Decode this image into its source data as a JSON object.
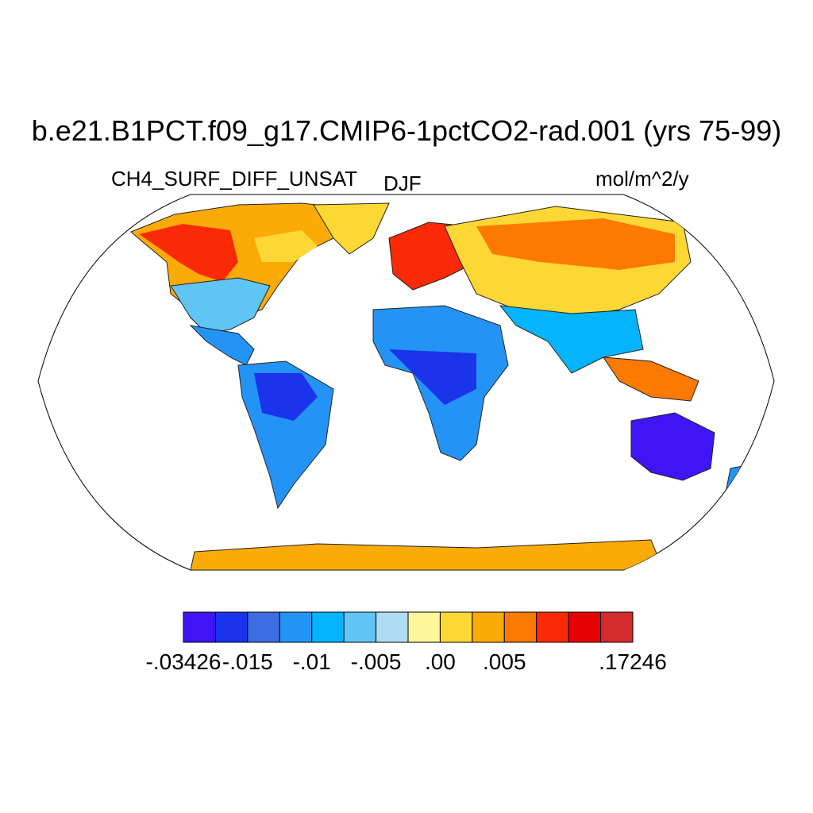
{
  "title": "b.e21.B1PCT.f09_g17.CMIP6-1pctCO2-rad.001 (yrs 75-99)",
  "subtitle_left": "CH4_SURF_DIFF_UNSAT",
  "subtitle_center": "DJF",
  "subtitle_right": "mol/m^2/y",
  "map": {
    "projection": "Robinson",
    "ocean_color": "#ffffff",
    "coastline_color": "#000000"
  },
  "colorbar": {
    "colors": [
      "#3f14f5",
      "#1a33eb",
      "#3c6de3",
      "#2394f6",
      "#06b4fb",
      "#5fc5f5",
      "#afdcf2",
      "#fff59d",
      "#fdd835",
      "#fbab07",
      "#fc7a00",
      "#fb2a06",
      "#e60002",
      "#d42b2d"
    ],
    "labels": [
      "-.03426",
      "-.015",
      "-.01",
      "-.005",
      ".00",
      ".005",
      ".17246"
    ],
    "label_positions": [
      0,
      2,
      4,
      6,
      8,
      10,
      14
    ]
  }
}
